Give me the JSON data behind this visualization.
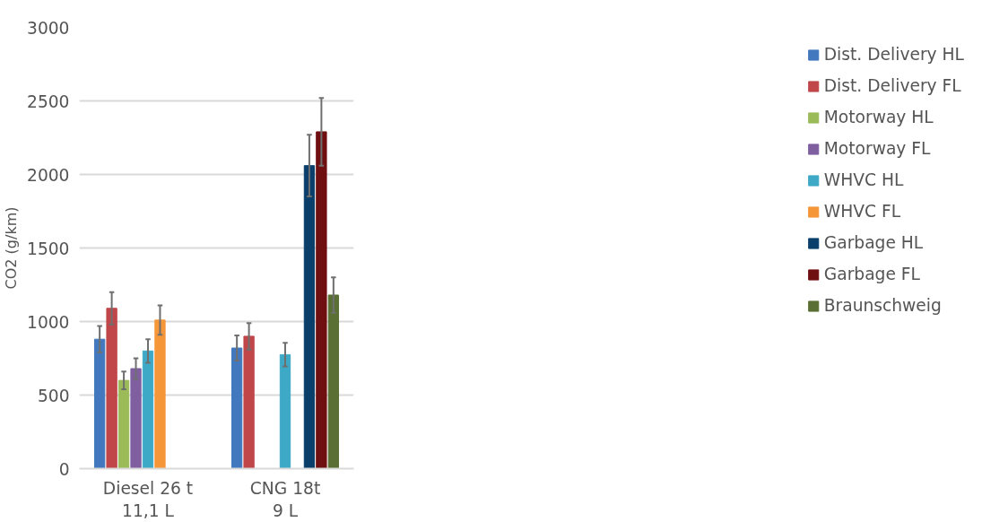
{
  "chart_data": {
    "type": "bar",
    "ylabel": "CO2 (g/km)",
    "categories": [
      "Diesel 26 t\n11,1 L",
      "CNG 18t\n9 L"
    ],
    "ylim": [
      0,
      3000
    ],
    "yticks": [
      0,
      500,
      1000,
      1500,
      2000,
      2500,
      3000
    ],
    "grid": "y",
    "legend": "right",
    "series": [
      {
        "name": "Dist. Delivery HL",
        "color": "#4178be",
        "values": [
          880,
          820
        ],
        "errors": [
          90,
          85
        ]
      },
      {
        "name": "Dist. Delivery FL",
        "color": "#c0464a",
        "values": [
          1090,
          900
        ],
        "errors": [
          110,
          90
        ]
      },
      {
        "name": "Motorway HL",
        "color": "#9bbb59",
        "values": [
          600,
          null
        ],
        "errors": [
          60,
          null
        ]
      },
      {
        "name": "Motorway FL",
        "color": "#7f5fa0",
        "values": [
          680,
          null
        ],
        "errors": [
          70,
          null
        ]
      },
      {
        "name": "WHVC HL",
        "color": "#3ea9c6",
        "values": [
          800,
          775
        ],
        "errors": [
          80,
          80
        ]
      },
      {
        "name": "WHVC FL",
        "color": "#f59638",
        "values": [
          1010,
          null
        ],
        "errors": [
          100,
          null
        ]
      },
      {
        "name": "Garbage HL",
        "color": "#0b3f6b",
        "values": [
          null,
          2060
        ],
        "errors": [
          null,
          210
        ]
      },
      {
        "name": "Garbage FL",
        "color": "#6f0f11",
        "values": [
          null,
          2290
        ],
        "errors": [
          null,
          230
        ]
      },
      {
        "name": "Braunschweig",
        "color": "#5a6f33",
        "values": [
          null,
          1180
        ],
        "errors": [
          null,
          120
        ]
      }
    ]
  }
}
